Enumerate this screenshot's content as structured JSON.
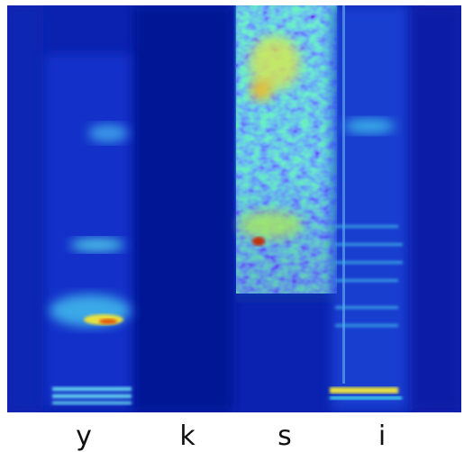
{
  "labels": [
    "y",
    "k",
    "s",
    "i"
  ]
}
